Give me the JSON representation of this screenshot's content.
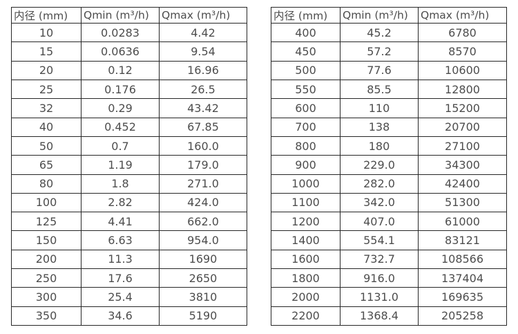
{
  "left_table": {
    "headers": [
      "内径 (mm)",
      "Qmin (m³/h)",
      "Qmax (m³/h)"
    ],
    "rows": [
      [
        "10",
        "0.0283",
        "4.42"
      ],
      [
        "15",
        "0.0636",
        "9.54"
      ],
      [
        "20",
        "0.12",
        "16.96"
      ],
      [
        "25",
        "0.176",
        "26.5"
      ],
      [
        "32",
        "0.29",
        "43.42"
      ],
      [
        "40",
        "0.452",
        "67.85"
      ],
      [
        "50",
        "0.7",
        "160.0"
      ],
      [
        "65",
        "1.19",
        "179.0"
      ],
      [
        "80",
        "1.8",
        "271.0"
      ],
      [
        "100",
        "2.82",
        "424.0"
      ],
      [
        "125",
        "4.41",
        "662.0"
      ],
      [
        "150",
        "6.63",
        "954.0"
      ],
      [
        "200",
        "11.3",
        "1690"
      ],
      [
        "250",
        "17.6",
        "2650"
      ],
      [
        "300",
        "25.4",
        "3810"
      ],
      [
        "350",
        "34.6",
        "5190"
      ]
    ]
  },
  "right_table": {
    "headers": [
      "内径 (mm)",
      "Qmin (m³/h)",
      "Qmax (m³/h)"
    ],
    "rows": [
      [
        "400",
        "45.2",
        "6780"
      ],
      [
        "450",
        "57.2",
        "8570"
      ],
      [
        "500",
        "77.6",
        "10600"
      ],
      [
        "550",
        "85.5",
        "12800"
      ],
      [
        "600",
        "110",
        "15200"
      ],
      [
        "700",
        "138",
        "20700"
      ],
      [
        "800",
        "180",
        "27100"
      ],
      [
        "900",
        "229.0",
        "34300"
      ],
      [
        "1000",
        "282.0",
        "42400"
      ],
      [
        "1100",
        "342.0",
        "51300"
      ],
      [
        "1200",
        "407.0",
        "61000"
      ],
      [
        "1400",
        "554.1",
        "83121"
      ],
      [
        "1600",
        "732.7",
        "108566"
      ],
      [
        "1800",
        "916.0",
        "137404"
      ],
      [
        "2000",
        "1131.0",
        "169635"
      ],
      [
        "2200",
        "1368.4",
        "205258"
      ]
    ]
  },
  "colors": {
    "border": "#262626",
    "text": "#4d4d4d",
    "background": "#ffffff"
  }
}
